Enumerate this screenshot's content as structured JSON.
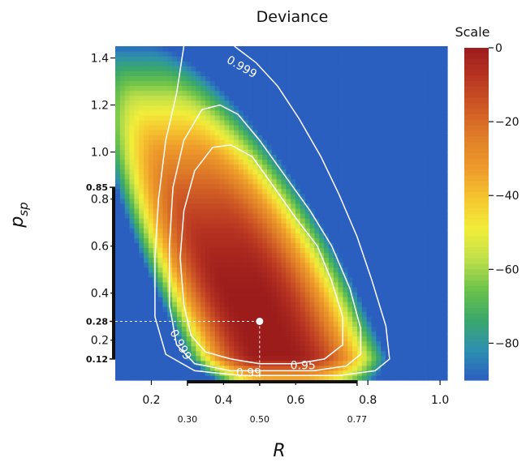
{
  "chart_data": {
    "type": "heatmap",
    "title": "Deviance",
    "xlabel": "R",
    "ylabel_main": "p",
    "ylabel_sub": "sp",
    "xlim": [
      0.1,
      1.02
    ],
    "ylim": [
      0.03,
      1.45
    ],
    "x_ticks": [
      0.2,
      0.4,
      0.6,
      0.8,
      1.0
    ],
    "x_tick_labels": [
      "0.2",
      "0.4",
      "0.6",
      "0.8",
      "1.0"
    ],
    "y_ticks": [
      0.2,
      0.4,
      0.6,
      0.8,
      1.0,
      1.2,
      1.4
    ],
    "y_tick_labels": [
      "0.2",
      "0.4",
      "0.6",
      "0.8",
      "1.0",
      "1.2",
      "1.4"
    ],
    "best_fit": {
      "R": 0.5,
      "p_sp": 0.28
    },
    "interval_R": {
      "low": 0.3,
      "best": 0.5,
      "high": 0.77,
      "labels": [
        "0.30",
        "0.50",
        "0.77"
      ]
    },
    "interval_p_sp": {
      "low": 0.12,
      "best": 0.28,
      "high": 0.85,
      "labels": [
        "0.12",
        "0.28",
        "0.85"
      ]
    },
    "contour_levels": [
      {
        "label": "0.95",
        "points": [
          [
            0.42,
            0.12
          ],
          [
            0.35,
            0.15
          ],
          [
            0.31,
            0.22
          ],
          [
            0.29,
            0.35
          ],
          [
            0.28,
            0.55
          ],
          [
            0.29,
            0.75
          ],
          [
            0.32,
            0.92
          ],
          [
            0.37,
            1.02
          ],
          [
            0.42,
            1.03
          ],
          [
            0.48,
            0.98
          ],
          [
            0.54,
            0.85
          ],
          [
            0.6,
            0.72
          ],
          [
            0.66,
            0.6
          ],
          [
            0.7,
            0.45
          ],
          [
            0.73,
            0.3
          ],
          [
            0.73,
            0.18
          ],
          [
            0.68,
            0.12
          ],
          [
            0.6,
            0.1
          ],
          [
            0.5,
            0.1
          ],
          [
            0.42,
            0.12
          ]
        ]
      },
      {
        "label": "0.99",
        "points": [
          [
            0.42,
            0.07
          ],
          [
            0.32,
            0.1
          ],
          [
            0.27,
            0.18
          ],
          [
            0.25,
            0.35
          ],
          [
            0.25,
            0.6
          ],
          [
            0.26,
            0.85
          ],
          [
            0.29,
            1.05
          ],
          [
            0.34,
            1.18
          ],
          [
            0.39,
            1.2
          ],
          [
            0.44,
            1.16
          ],
          [
            0.5,
            1.05
          ],
          [
            0.57,
            0.9
          ],
          [
            0.64,
            0.75
          ],
          [
            0.7,
            0.6
          ],
          [
            0.75,
            0.42
          ],
          [
            0.78,
            0.25
          ],
          [
            0.78,
            0.14
          ],
          [
            0.74,
            0.09
          ],
          [
            0.65,
            0.07
          ],
          [
            0.55,
            0.07
          ],
          [
            0.42,
            0.07
          ]
        ]
      },
      {
        "label": "0.999",
        "points": [
          [
            0.58,
            0.05
          ],
          [
            0.45,
            0.05
          ],
          [
            0.32,
            0.07
          ],
          [
            0.24,
            0.14
          ],
          [
            0.21,
            0.3
          ],
          [
            0.21,
            0.55
          ],
          [
            0.22,
            0.8
          ],
          [
            0.24,
            1.05
          ],
          [
            0.27,
            1.25
          ],
          [
            0.29,
            1.45
          ],
          [
            null,
            null
          ],
          [
            0.43,
            1.45
          ],
          [
            0.49,
            1.38
          ],
          [
            0.55,
            1.28
          ],
          [
            0.61,
            1.14
          ],
          [
            0.67,
            0.98
          ],
          [
            0.72,
            0.82
          ],
          [
            0.77,
            0.64
          ],
          [
            0.81,
            0.46
          ],
          [
            0.85,
            0.26
          ],
          [
            0.86,
            0.12
          ],
          [
            0.82,
            0.07
          ],
          [
            0.72,
            0.05
          ],
          [
            0.58,
            0.05
          ]
        ]
      }
    ],
    "colorbar": {
      "label": "Scale",
      "min": -90,
      "max": 0,
      "ticks": [
        0,
        -20,
        -40,
        -60,
        -80
      ],
      "tick_labels": [
        "0",
        "−20",
        "−40",
        "−60",
        "−80"
      ],
      "colors": [
        "#2b5fbf",
        "#2e8fb0",
        "#3aa86a",
        "#6cc24a",
        "#bfe04a",
        "#f1ee3a",
        "#f5c630",
        "#ee9b2b",
        "#e07f28",
        "#cf5a25",
        "#b93622",
        "#9c1c1c"
      ]
    }
  }
}
